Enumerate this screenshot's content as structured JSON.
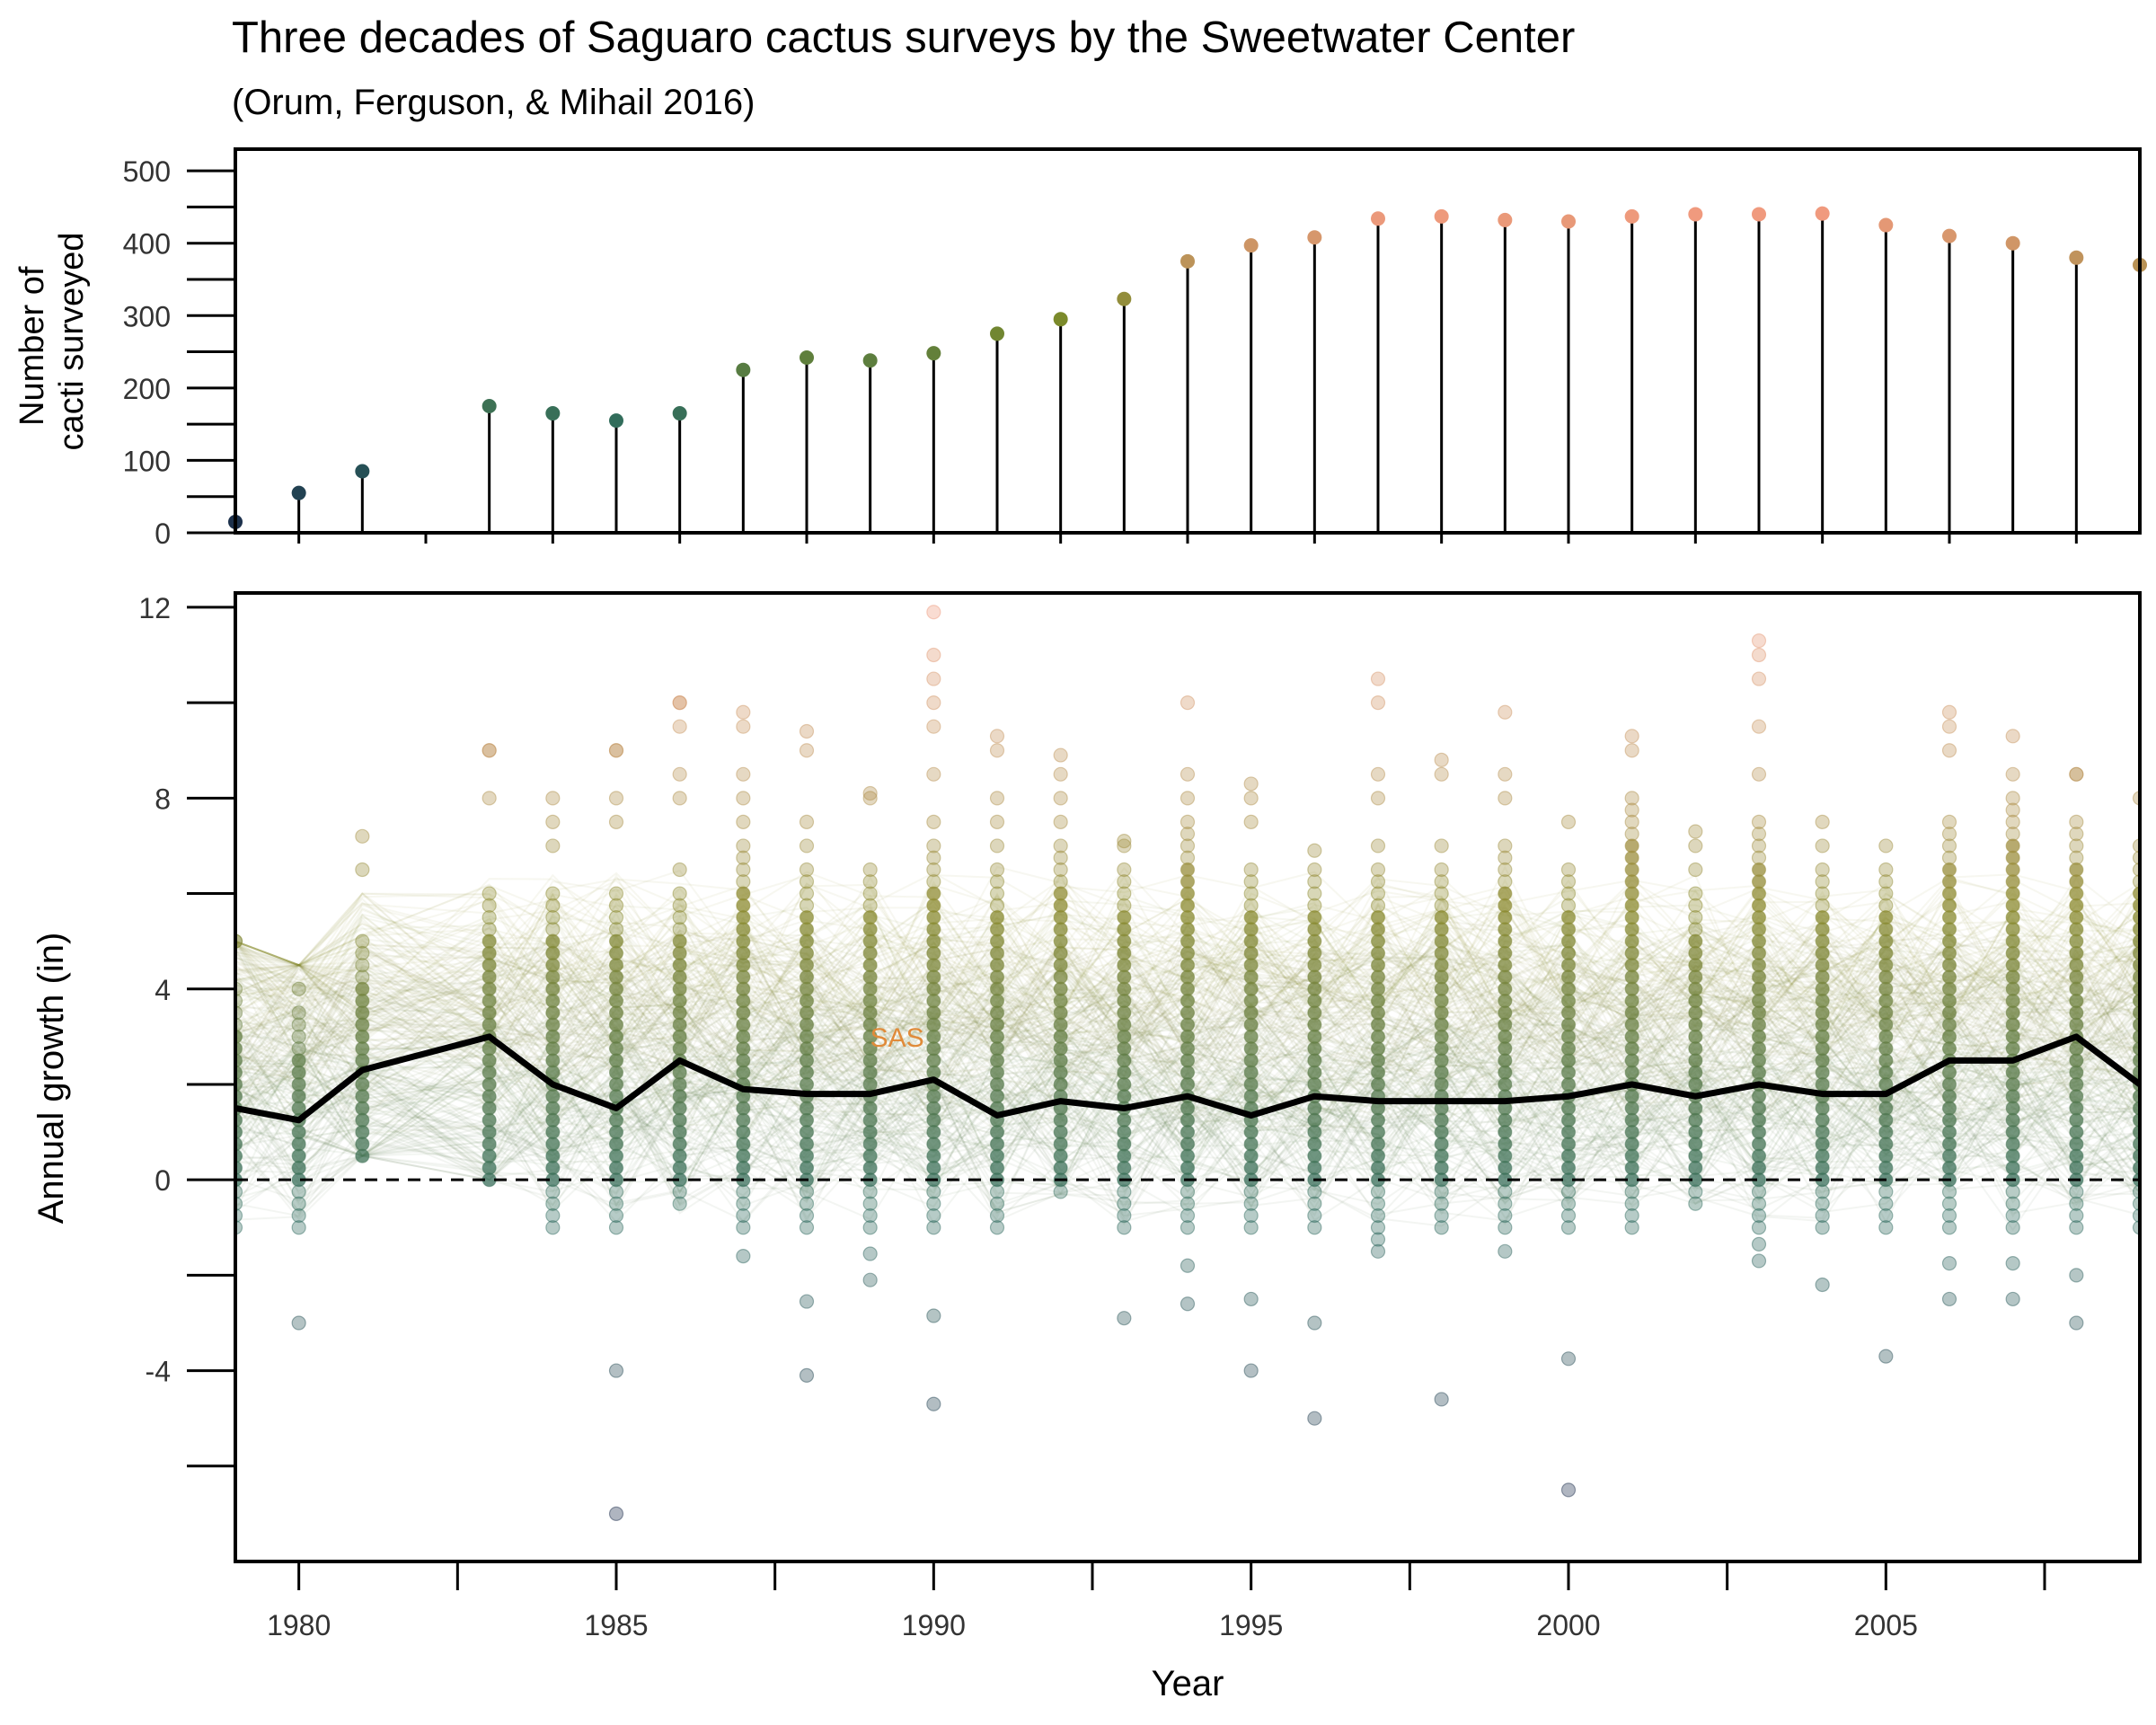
{
  "title": "Three decades of Saguaro cactus surveys by the Sweetwater Center",
  "subtitle": "(Orum, Ferguson, & Mihail 2016)",
  "chart_data": [
    {
      "type": "line",
      "panel": "top",
      "mark": "lollipop",
      "ylabel_line1": "Number of",
      "ylabel_line2": "cacti surveyed",
      "ylim": [
        0,
        500
      ],
      "yticks": [
        "0",
        "100",
        "200",
        "300",
        "400",
        "500"
      ],
      "x": [
        1979,
        1980,
        1981,
        1983,
        1984,
        1985,
        1986,
        1987,
        1988,
        1989,
        1990,
        1991,
        1992,
        1993,
        1994,
        1995,
        1996,
        1997,
        1998,
        1999,
        2000,
        2001,
        2002,
        2003,
        2004,
        2005,
        2006,
        2007,
        2008,
        2009
      ],
      "values": [
        15,
        55,
        85,
        175,
        165,
        155,
        165,
        225,
        242,
        238,
        248,
        275,
        295,
        323,
        375,
        397,
        408,
        434,
        437,
        432,
        430,
        437,
        440,
        440,
        441,
        425,
        410,
        400,
        380,
        370
      ],
      "color_scale": {
        "low": "#1b2a4a",
        "mid": "#7a8a2a",
        "high": "#f09a7e"
      }
    },
    {
      "type": "scatter",
      "panel": "bottom",
      "xlabel": "Year",
      "ylabel": "Annual growth (in)",
      "xlim": [
        1979,
        2009
      ],
      "ylim": [
        -8,
        12.3
      ],
      "xticks": [
        "1980",
        "1985",
        "1990",
        "1995",
        "2000",
        "2005"
      ],
      "yticks": [
        "-4",
        "0",
        "4",
        "8",
        "12"
      ],
      "reference_line": {
        "y": 0,
        "style": "dashed"
      },
      "annotation": {
        "text": "SAS",
        "x": 1989,
        "y": 3,
        "color": "#e08b3a"
      },
      "median_series": {
        "x": [
          1979,
          1980,
          1981,
          1983,
          1984,
          1985,
          1986,
          1987,
          1988,
          1989,
          1990,
          1991,
          1992,
          1993,
          1994,
          1995,
          1996,
          1997,
          1998,
          1999,
          2000,
          2001,
          2002,
          2003,
          2004,
          2005,
          2006,
          2007,
          2008,
          2009
        ],
        "values": [
          1.5,
          1.25,
          2.3,
          3.0,
          2.0,
          1.5,
          2.5,
          1.9,
          1.8,
          1.8,
          2.1,
          1.35,
          1.65,
          1.5,
          1.75,
          1.35,
          1.75,
          1.65,
          1.65,
          1.65,
          1.75,
          2.0,
          1.75,
          2.0,
          1.8,
          1.8,
          2.5,
          2.5,
          3.0,
          2.0
        ]
      },
      "point_ranges": {
        "x": [
          1979,
          1980,
          1981,
          1983,
          1984,
          1985,
          1986,
          1987,
          1988,
          1989,
          1990,
          1991,
          1992,
          1993,
          1994,
          1995,
          1996,
          1997,
          1998,
          1999,
          2000,
          2001,
          2002,
          2003,
          2004,
          2005,
          2006,
          2007,
          2008,
          2009
        ],
        "min": [
          -1,
          -3,
          0.5,
          0,
          -1,
          -7,
          -0.7,
          -1.6,
          -4.1,
          -2.1,
          -4.7,
          -1,
          -0.3,
          -2.9,
          -2.6,
          -4,
          -5,
          -1.5,
          -4.6,
          -1.5,
          -6.5,
          -1,
          -0.5,
          -1.7,
          -2.2,
          -3.7,
          -2.5,
          -2.5,
          -3,
          -1
        ],
        "max": [
          5,
          4,
          7.2,
          9,
          8,
          9,
          10,
          9.8,
          9.4,
          8.1,
          11.9,
          9.3,
          8.9,
          7.1,
          10,
          8.3,
          6.9,
          10.5,
          8.8,
          9.8,
          7.5,
          9.3,
          7.3,
          11.3,
          7.5,
          7,
          9.8,
          9.3,
          8.5,
          8
        ],
        "typical_high": [
          4,
          3.5,
          5,
          6,
          6,
          6,
          6,
          7,
          6.5,
          6.5,
          7,
          6.5,
          7,
          6.5,
          7.5,
          6.5,
          6.5,
          6.5,
          6.5,
          7,
          6.5,
          8,
          6,
          7.5,
          6.5,
          6.5,
          7.5,
          8,
          7.5,
          7
        ]
      },
      "color_scale": {
        "low": "#1b2a4a",
        "mid": "#2e6b5e",
        "upper": "#8a8a2e",
        "high": "#f09a7e"
      }
    }
  ]
}
